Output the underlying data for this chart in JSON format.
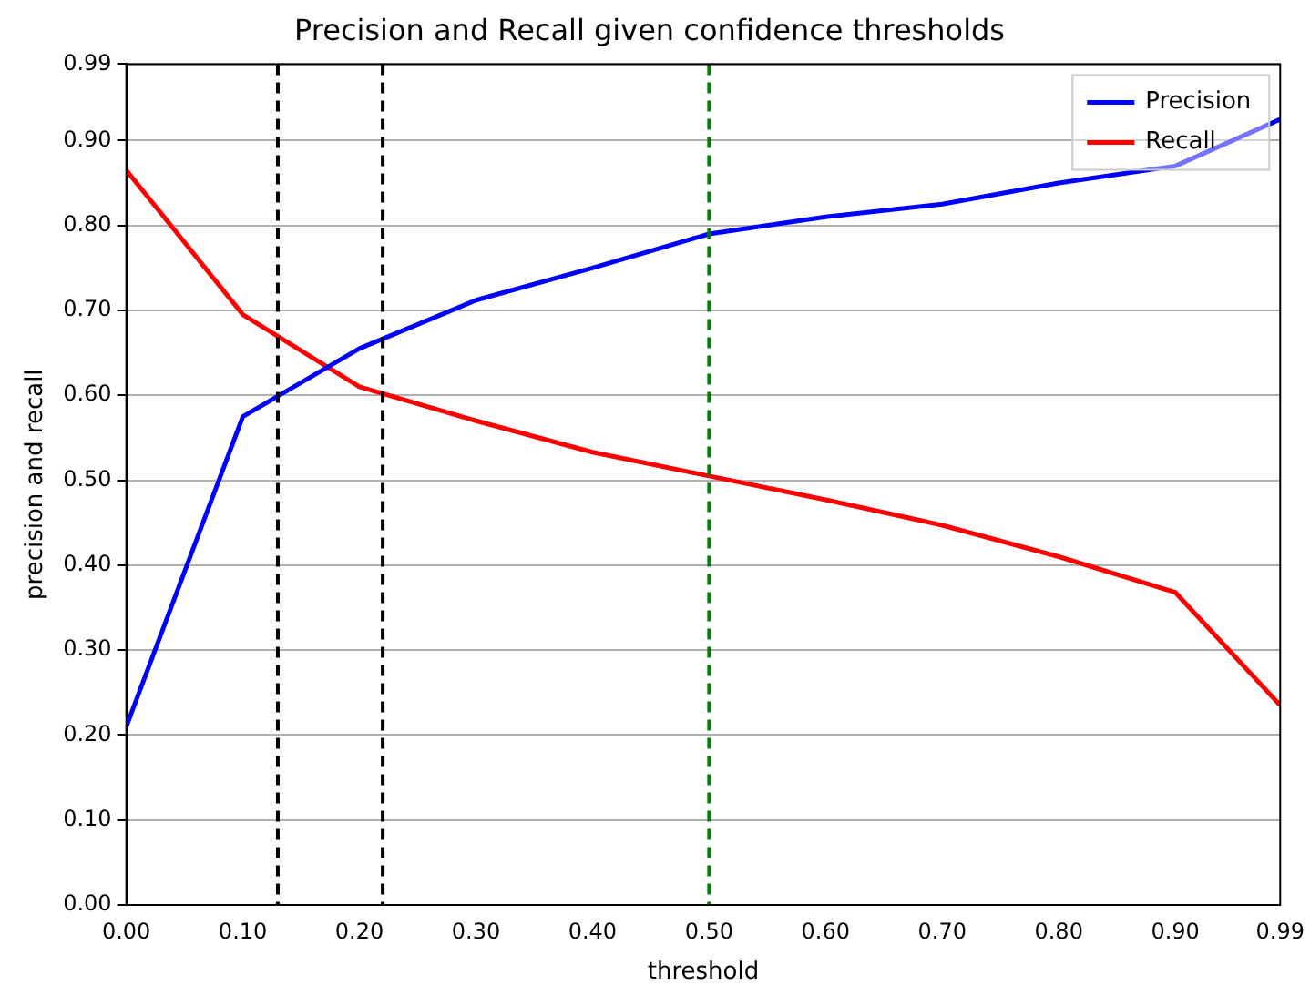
{
  "chart_data": {
    "type": "line",
    "title": "Precision and Recall given confidence thresholds",
    "xlabel": "threshold",
    "ylabel": "precision and recall",
    "x": [
      0,
      0.1,
      0.2,
      0.3,
      0.4,
      0.5,
      0.6,
      0.7,
      0.8,
      0.9,
      0.99
    ],
    "series": [
      {
        "name": "Precision",
        "color": "#0000ff",
        "values": [
          0.21,
          0.575,
          0.655,
          0.712,
          0.75,
          0.79,
          0.81,
          0.825,
          0.85,
          0.87,
          0.925
        ]
      },
      {
        "name": "Recall",
        "color": "#ff0000",
        "values": [
          0.865,
          0.695,
          0.61,
          0.57,
          0.533,
          0.505,
          0.477,
          0.447,
          0.41,
          0.368,
          0.235
        ]
      }
    ],
    "xlim": [
      0,
      0.99
    ],
    "ylim": [
      0,
      0.99
    ],
    "xticks": [
      {
        "value": 0,
        "label": "0.00"
      },
      {
        "value": 0.1,
        "label": "0.10"
      },
      {
        "value": 0.2,
        "label": "0.20"
      },
      {
        "value": 0.3,
        "label": "0.30"
      },
      {
        "value": 0.4,
        "label": "0.40"
      },
      {
        "value": 0.5,
        "label": "0.50"
      },
      {
        "value": 0.6,
        "label": "0.60"
      },
      {
        "value": 0.7,
        "label": "0.70"
      },
      {
        "value": 0.8,
        "label": "0.80"
      },
      {
        "value": 0.9,
        "label": "0.90"
      },
      0.99
    ],
    "yticks": [
      {
        "value": 0,
        "label": "0.00"
      },
      {
        "value": 0.1,
        "label": "0.10"
      },
      {
        "value": 0.2,
        "label": "0.20"
      },
      {
        "value": 0.3,
        "label": "0.30"
      },
      {
        "value": 0.4,
        "label": "0.40"
      },
      {
        "value": 0.5,
        "label": "0.50"
      },
      {
        "value": 0.6,
        "label": "0.60"
      },
      {
        "value": 0.7,
        "label": "0.70"
      },
      {
        "value": 0.8,
        "label": "0.80"
      },
      {
        "value": 0.9,
        "label": "0.90"
      },
      0.99
    ],
    "ref_lines": [
      {
        "axis": "x",
        "value": 0.13,
        "color": "#000000",
        "line_style": "dashed"
      },
      {
        "axis": "x",
        "value": 0.22,
        "color": "#000000",
        "line_style": "dashed"
      },
      {
        "axis": "x",
        "value": 0.5,
        "color": "#008000",
        "line_style": "dashed"
      }
    ],
    "grid": "y",
    "legend": "top right",
    "marker": "none",
    "line_style": "solid"
  }
}
